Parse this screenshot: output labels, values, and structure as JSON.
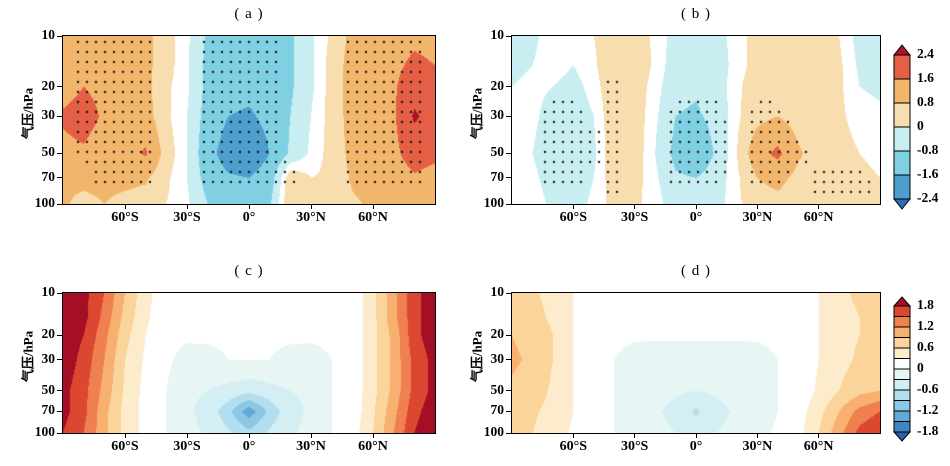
{
  "figure": {
    "ylabel": "气压/hPa",
    "background": "#ffffff"
  },
  "chart_data": {
    "type": "heatmap",
    "description": "Four latitude-pressure contour cross sections (a,b with significance stippling; c,d smooth), log pressure axis 10-100 hPa, latitude 90S-90N",
    "x_lats": [
      -90,
      -80,
      -70,
      -60,
      -50,
      -40,
      -30,
      -20,
      -10,
      0,
      10,
      20,
      30,
      40,
      50,
      60,
      70,
      80,
      90
    ],
    "pressure_levels": [
      10,
      15,
      20,
      30,
      50,
      70,
      100
    ],
    "x_ticks": [
      {
        "v": -60,
        "label": "60°S"
      },
      {
        "v": -30,
        "label": "30°S"
      },
      {
        "v": 0,
        "label": "0°"
      },
      {
        "v": 30,
        "label": "30°N"
      },
      {
        "v": 60,
        "label": "60°N"
      }
    ],
    "y_ticks": [
      {
        "v": 10,
        "label": "10"
      },
      {
        "v": 20,
        "label": "20"
      },
      {
        "v": 30,
        "label": "30"
      },
      {
        "v": 50,
        "label": "50"
      },
      {
        "v": 70,
        "label": "70"
      },
      {
        "v": 100,
        "label": "100"
      }
    ],
    "colormaps": {
      "A": {
        "boundaries": [
          -2.4,
          -1.6,
          -0.8,
          -0.2,
          0.2,
          0.8,
          1.6,
          2.4
        ],
        "colors": [
          "#2c6fb7",
          "#4e9fcd",
          "#7fd0e2",
          "#c9eef2",
          "#ffffff",
          "#f8ddae",
          "#f2b56c",
          "#e45f45",
          "#a81326"
        ]
      },
      "B": {
        "boundaries": [
          -1.8,
          -1.5,
          -1.2,
          -0.9,
          -0.6,
          -0.3,
          0,
          0.3,
          0.6,
          0.9,
          1.2,
          1.5,
          1.8
        ],
        "colors": [
          "#2a5fae",
          "#3f85c4",
          "#63a9d8",
          "#8cc7e6",
          "#b3def0",
          "#d4eff3",
          "#e7f6f5",
          "#ffffff",
          "#fceccb",
          "#fad49b",
          "#f7b070",
          "#f0804f",
          "#dc4732",
          "#a50f26"
        ]
      }
    },
    "colorbars": [
      {
        "name": "colorbar-top",
        "segments_top_to_bottom": [
          "#a81326",
          "#e45f45",
          "#f2b56c",
          "#f8ddae",
          "#c9eef2",
          "#7fd0e2",
          "#4e9fcd",
          "#2c6fb7"
        ],
        "tick_labels": [
          "2.4",
          "1.6",
          "0.8",
          "0",
          "-0.8",
          "-1.6",
          "-2.4"
        ]
      },
      {
        "name": "colorbar-bottom",
        "segments_top_to_bottom": [
          "#a50f26",
          "#dc4732",
          "#f0804f",
          "#f7b070",
          "#fad49b",
          "#fceccb",
          "#ffffff",
          "#e7f6f5",
          "#d4eff3",
          "#b3def0",
          "#8cc7e6",
          "#63a9d8",
          "#3f85c4",
          "#2a5fae"
        ],
        "tick_labels": [
          "1.8",
          "1.2",
          "0.6",
          "0",
          "-0.6",
          "-1.2",
          "-1.8"
        ]
      }
    ],
    "panels": [
      {
        "id": "a",
        "title": "( a )",
        "colormap": "A",
        "values": [
          [
            1.1,
            1.2,
            1.3,
            1.2,
            1.0,
            0.4,
            -0.1,
            -0.9,
            -1.1,
            -1.2,
            -1.1,
            -0.9,
            -0.3,
            0.3,
            1.0,
            1.2,
            1.2,
            1.4,
            1.3
          ],
          [
            1.2,
            1.4,
            1.4,
            1.2,
            1.0,
            0.4,
            -0.1,
            -1.0,
            -1.2,
            -1.3,
            -1.2,
            -0.9,
            -0.3,
            0.4,
            1.1,
            1.3,
            1.4,
            1.8,
            1.6
          ],
          [
            1.3,
            1.6,
            1.4,
            1.2,
            1.0,
            0.3,
            -0.1,
            -1.0,
            -1.3,
            -1.4,
            -1.3,
            -0.9,
            -0.3,
            0.4,
            1.1,
            1.3,
            1.5,
            2.1,
            1.9
          ],
          [
            1.7,
            1.9,
            1.5,
            1.2,
            1.1,
            0.3,
            -0.2,
            -1.1,
            -1.6,
            -1.7,
            -1.4,
            -0.8,
            -0.2,
            0.4,
            1.1,
            1.2,
            1.5,
            2.5,
            2.1
          ],
          [
            1.4,
            1.5,
            1.2,
            1.3,
            1.7,
            0.5,
            -0.2,
            -1.3,
            -2.0,
            -2.2,
            -1.6,
            -0.7,
            -0.1,
            0.4,
            1.0,
            1.2,
            1.4,
            2.0,
            1.8
          ],
          [
            0.9,
            1.0,
            1.0,
            1.0,
            0.9,
            0.3,
            -0.2,
            -1.1,
            -1.5,
            -1.6,
            -1.2,
            0.6,
            0.2,
            0.3,
            0.9,
            1.1,
            1.2,
            1.5,
            1.3
          ],
          [
            0.9,
            0.6,
            0.8,
            0.6,
            0.5,
            0.2,
            -0.1,
            -0.8,
            -1.0,
            -1.1,
            -0.9,
            0.7,
            0.2,
            0.2,
            0.7,
            0.9,
            0.9,
            1.0,
            0.9
          ]
        ],
        "stipple": [
          [
            0,
            1,
            1,
            1,
            1,
            0,
            0,
            1,
            1,
            1,
            1,
            0,
            0,
            0,
            1,
            1,
            1,
            1,
            0
          ],
          [
            0,
            1,
            1,
            1,
            1,
            0,
            0,
            1,
            1,
            1,
            1,
            0,
            0,
            0,
            1,
            1,
            1,
            1,
            0
          ],
          [
            0,
            1,
            1,
            1,
            1,
            0,
            0,
            1,
            1,
            1,
            1,
            0,
            0,
            0,
            1,
            1,
            1,
            1,
            0
          ],
          [
            0,
            1,
            1,
            1,
            1,
            0,
            0,
            1,
            1,
            1,
            1,
            0,
            0,
            0,
            1,
            1,
            1,
            1,
            0
          ],
          [
            0,
            1,
            1,
            1,
            1,
            0,
            0,
            1,
            1,
            1,
            1,
            0,
            0,
            0,
            1,
            1,
            1,
            1,
            0
          ],
          [
            0,
            0,
            1,
            1,
            1,
            0,
            0,
            1,
            1,
            1,
            1,
            1,
            0,
            0,
            1,
            1,
            1,
            1,
            0
          ],
          [
            0,
            0,
            0,
            0,
            0,
            0,
            0,
            0,
            0,
            0,
            0,
            0,
            0,
            0,
            0,
            0,
            0,
            0,
            0
          ]
        ]
      },
      {
        "id": "b",
        "title": "( b )",
        "colormap": "A",
        "values": [
          [
            -0.4,
            -0.3,
            0.0,
            0.1,
            0.2,
            0.6,
            0.5,
            0.1,
            -0.4,
            -0.5,
            -0.4,
            0.0,
            0.4,
            0.5,
            0.3,
            0.4,
            0.2,
            -0.4,
            -0.5
          ],
          [
            -0.3,
            -0.2,
            0.0,
            -0.2,
            0.1,
            0.7,
            0.6,
            0.1,
            -0.5,
            -0.6,
            -0.5,
            0.0,
            0.4,
            0.6,
            0.4,
            0.4,
            0.3,
            -0.3,
            -0.4
          ],
          [
            -0.2,
            -0.1,
            -0.2,
            -0.4,
            0.0,
            0.6,
            0.5,
            0.0,
            -0.6,
            -0.7,
            -0.5,
            0.1,
            0.5,
            0.6,
            0.4,
            0.4,
            0.3,
            -0.2,
            -0.3
          ],
          [
            0.0,
            -0.1,
            -0.4,
            -0.6,
            -0.2,
            0.6,
            0.5,
            -0.1,
            -0.8,
            -0.9,
            -0.6,
            0.1,
            0.6,
            0.8,
            0.5,
            0.4,
            0.3,
            0.0,
            -0.1
          ],
          [
            0.0,
            -0.2,
            -0.5,
            -0.7,
            -0.3,
            0.6,
            0.5,
            -0.2,
            -1.0,
            -1.4,
            -0.7,
            0.2,
            1.3,
            1.8,
            0.9,
            0.5,
            0.4,
            0.2,
            0.1
          ],
          [
            0.1,
            -0.1,
            -0.4,
            -0.5,
            -0.2,
            0.5,
            0.4,
            -0.1,
            -0.7,
            -0.8,
            -0.5,
            0.1,
            0.8,
            1.0,
            0.6,
            0.5,
            0.5,
            0.3,
            0.2
          ],
          [
            0.1,
            0.0,
            -0.3,
            -0.4,
            -0.1,
            0.4,
            0.3,
            0.0,
            -0.5,
            -0.6,
            -0.4,
            0.1,
            0.5,
            0.6,
            0.5,
            0.5,
            0.6,
            0.4,
            0.3
          ]
        ],
        "stipple": [
          [
            0,
            0,
            0,
            0,
            0,
            0,
            0,
            0,
            0,
            0,
            0,
            0,
            0,
            0,
            0,
            0,
            0,
            0,
            0
          ],
          [
            0,
            0,
            0,
            0,
            0,
            0,
            0,
            0,
            0,
            0,
            0,
            0,
            0,
            0,
            0,
            0,
            0,
            0,
            0
          ],
          [
            0,
            0,
            0,
            0,
            0,
            1,
            0,
            0,
            0,
            0,
            0,
            0,
            0,
            0,
            0,
            0,
            0,
            0,
            0
          ],
          [
            0,
            0,
            1,
            1,
            0,
            1,
            0,
            0,
            1,
            1,
            1,
            0,
            1,
            1,
            0,
            0,
            0,
            0,
            0
          ],
          [
            0,
            0,
            1,
            1,
            1,
            1,
            0,
            0,
            1,
            1,
            1,
            0,
            1,
            1,
            1,
            0,
            0,
            0,
            0
          ],
          [
            0,
            0,
            1,
            1,
            0,
            1,
            0,
            0,
            1,
            1,
            1,
            0,
            1,
            1,
            0,
            1,
            1,
            1,
            0
          ],
          [
            0,
            0,
            0,
            0,
            0,
            1,
            0,
            0,
            0,
            0,
            0,
            0,
            0,
            0,
            0,
            1,
            1,
            1,
            0
          ]
        ]
      },
      {
        "id": "c",
        "title": "( c )",
        "colormap": "B",
        "values": [
          [
            2.1,
            1.9,
            1.5,
            0.9,
            0.4,
            0.1,
            0.05,
            0.05,
            0.05,
            0.05,
            0.05,
            0.05,
            0.05,
            0.05,
            0.1,
            0.5,
            1.1,
            1.7,
            2.0
          ],
          [
            2.1,
            1.9,
            1.4,
            0.8,
            0.35,
            0.1,
            0.05,
            0.05,
            0.05,
            0.05,
            0.05,
            0.05,
            0.05,
            0.05,
            0.1,
            0.5,
            1.1,
            1.7,
            2.0
          ],
          [
            2.0,
            1.8,
            1.3,
            0.7,
            0.3,
            0.08,
            0.05,
            0.03,
            0.03,
            0.03,
            0.03,
            0.03,
            0.05,
            0.05,
            0.1,
            0.5,
            1.0,
            1.7,
            2.0
          ],
          [
            2.0,
            1.7,
            1.2,
            0.6,
            0.25,
            0.05,
            -0.1,
            -0.05,
            0.0,
            0.0,
            0.0,
            -0.05,
            -0.1,
            0.0,
            0.1,
            0.5,
            1.0,
            1.6,
            1.9
          ],
          [
            1.9,
            1.6,
            1.1,
            0.55,
            0.2,
            0.0,
            -0.25,
            -0.3,
            -0.4,
            -0.5,
            -0.4,
            -0.3,
            -0.25,
            0.0,
            0.1,
            0.5,
            1.0,
            1.6,
            1.9
          ],
          [
            1.9,
            1.6,
            1.0,
            0.5,
            0.2,
            0.0,
            -0.25,
            -0.4,
            -0.8,
            -1.4,
            -0.8,
            -0.4,
            -0.25,
            0.0,
            0.1,
            0.55,
            1.1,
            1.7,
            2.0
          ],
          [
            1.8,
            1.5,
            1.0,
            0.5,
            0.2,
            0.0,
            -0.2,
            -0.35,
            -0.55,
            -0.8,
            -0.55,
            -0.35,
            -0.2,
            0.0,
            0.15,
            0.6,
            1.2,
            1.8,
            2.1
          ]
        ],
        "stipple": null
      },
      {
        "id": "d",
        "title": "( d )",
        "colormap": "B",
        "values": [
          [
            0.7,
            0.65,
            0.5,
            0.3,
            0.1,
            0.05,
            0.05,
            0.05,
            0.05,
            0.05,
            0.05,
            0.05,
            0.05,
            0.05,
            0.1,
            0.3,
            0.55,
            0.65,
            0.7
          ],
          [
            0.75,
            0.7,
            0.55,
            0.3,
            0.1,
            0.05,
            0.05,
            0.05,
            0.05,
            0.05,
            0.05,
            0.05,
            0.05,
            0.05,
            0.1,
            0.3,
            0.5,
            0.6,
            0.65
          ],
          [
            0.9,
            0.8,
            0.6,
            0.3,
            0.1,
            0.05,
            0.03,
            0.03,
            0.03,
            0.03,
            0.03,
            0.03,
            0.03,
            0.05,
            0.1,
            0.3,
            0.5,
            0.6,
            0.65
          ],
          [
            0.95,
            0.85,
            0.6,
            0.3,
            0.1,
            0.0,
            -0.08,
            -0.1,
            -0.1,
            -0.1,
            -0.1,
            -0.1,
            -0.08,
            0.0,
            0.1,
            0.3,
            0.5,
            0.65,
            0.7
          ],
          [
            0.85,
            0.75,
            0.55,
            0.3,
            0.1,
            0.0,
            -0.15,
            -0.2,
            -0.25,
            -0.3,
            -0.25,
            -0.2,
            -0.15,
            0.0,
            0.1,
            0.35,
            0.6,
            0.8,
            0.9
          ],
          [
            0.75,
            0.65,
            0.5,
            0.3,
            0.1,
            0.0,
            -0.15,
            -0.25,
            -0.4,
            -0.65,
            -0.4,
            -0.25,
            -0.15,
            0.0,
            0.15,
            0.5,
            0.9,
            1.3,
            1.5
          ],
          [
            0.7,
            0.6,
            0.45,
            0.25,
            0.1,
            0.0,
            -0.1,
            -0.2,
            -0.3,
            -0.45,
            -0.3,
            -0.2,
            -0.1,
            0.05,
            0.2,
            0.6,
            1.1,
            1.6,
            1.8
          ]
        ],
        "stipple": null
      }
    ]
  }
}
